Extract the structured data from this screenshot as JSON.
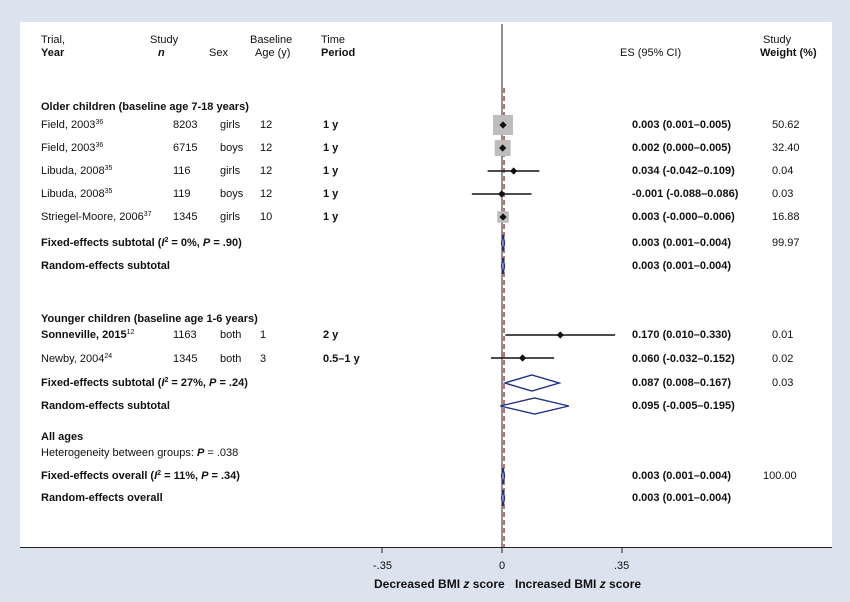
{
  "headers": {
    "trial": [
      "Trial,",
      "Year"
    ],
    "study_n": [
      "Study",
      "n"
    ],
    "sex": "Sex",
    "baseline_age": [
      "Baseline",
      "Age (y)"
    ],
    "time_period": [
      "Time",
      "Period"
    ],
    "es": "ES (95% CI)",
    "weight": [
      "Study",
      "Weight (%)"
    ]
  },
  "groups": {
    "older": "Older children (baseline age 7-18 years)",
    "younger": "Younger children (baseline age 1-6 years)",
    "all": "All ages",
    "heterogeneity_prefix": "Heterogeneity between groups: ",
    "heterogeneity_p": "P",
    "heterogeneity_value": " = .038"
  },
  "rows": [
    {
      "study": "Field, 2003",
      "ref": "36",
      "n": "8203",
      "sex": "girls",
      "age": "12",
      "period": "1 y",
      "es": "0.003 (0.001–0.005)",
      "weight": "50.62"
    },
    {
      "study": "Field, 2003",
      "ref": "36",
      "n": "6715",
      "sex": "boys",
      "age": "12",
      "period": "1 y",
      "es": "0.002 (0.000–0.005)",
      "weight": "32.40"
    },
    {
      "study": "Libuda, 2008",
      "ref": "35",
      "n": "116",
      "sex": "girls",
      "age": "12",
      "period": "1 y",
      "es": "0.034 (-0.042–0.109)",
      "weight": "0.04"
    },
    {
      "study": "Libuda, 2008",
      "ref": "35",
      "n": "119",
      "sex": "boys",
      "age": "12",
      "period": "1 y",
      "es": "-0.001 (-0.088–0.086)",
      "weight": "0.03"
    },
    {
      "study": "Striegel-Moore, 2006",
      "ref": "37",
      "n": "1345",
      "sex": "girls",
      "age": "10",
      "period": "1 y",
      "es": "0.003 (-0.000–0.006)",
      "weight": "16.88"
    },
    {
      "study": "Sonneville, 2015",
      "ref": "12",
      "n": "1163",
      "sex": "both",
      "age": "1",
      "period": "2 y",
      "es": "0.170 (0.010–0.330)",
      "weight": "0.01"
    },
    {
      "study": "Newby, 2004",
      "ref": "24",
      "n": "1345",
      "sex": "both",
      "age": "3",
      "period": "0.5–1 y",
      "es": "0.060 (-0.032–0.152)",
      "weight": "0.02"
    }
  ],
  "subtotals": [
    {
      "label_pre": "Fixed-effects subtotal (",
      "i2": "I",
      "label_mid": " = 0%, ",
      "p": "P",
      "label_post": " = .90)",
      "es": "0.003 (0.001–0.004)",
      "weight": "99.97"
    },
    {
      "label": "Random-effects subtotal",
      "es": "0.003 (0.001–0.004)",
      "weight": ""
    },
    {
      "label_pre": "Fixed-effects subtotal (",
      "i2": "I",
      "label_mid": " = 27%, ",
      "p": "P",
      "label_post": " = .24)",
      "es": "0.087 (0.008–0.167)",
      "weight": "0.03"
    },
    {
      "label": "Random-effects subtotal",
      "es": "0.095 (-0.005–0.195)",
      "weight": ""
    },
    {
      "label_pre": "Fixed-effects overall (",
      "i2": "I",
      "label_mid": " = 11%, ",
      "p": "P",
      "label_post": " = .34)",
      "es": "0.003 (0.001–0.004)",
      "weight": "100.00"
    },
    {
      "label": "Random-effects overall",
      "es": "0.003 (0.001–0.004)",
      "weight": ""
    }
  ],
  "axis": {
    "ticks": [
      "-.35",
      "0",
      ".35"
    ],
    "left_label": "Decreased BMI ",
    "right_label": "Increased BMI ",
    "z": "z",
    "score": " score"
  },
  "chart_data": {
    "type": "forest",
    "xlim": [
      -0.35,
      0.35
    ],
    "xticks": [
      -0.35,
      0,
      0.35
    ],
    "xlabel": "Decreased BMI z score   Increased BMI z score",
    "null_line": 0,
    "overall_line": 0.003,
    "colors": {
      "marker": "#111111",
      "box": "#bdbdbd",
      "diamond": "#1f2f8a",
      "overall_line": "#b03030",
      "background": "#dbe4ee"
    },
    "studies": [
      {
        "label": "Field, 2003 (girls)",
        "es": 0.003,
        "lo": 0.001,
        "hi": 0.005,
        "weight": 50.62
      },
      {
        "label": "Field, 2003 (boys)",
        "es": 0.002,
        "lo": 0.0,
        "hi": 0.005,
        "weight": 32.4
      },
      {
        "label": "Libuda, 2008 (girls)",
        "es": 0.034,
        "lo": -0.042,
        "hi": 0.109,
        "weight": 0.04
      },
      {
        "label": "Libuda, 2008 (boys)",
        "es": -0.001,
        "lo": -0.088,
        "hi": 0.086,
        "weight": 0.03
      },
      {
        "label": "Striegel-Moore, 2006",
        "es": 0.003,
        "lo": -0.0,
        "hi": 0.006,
        "weight": 16.88
      },
      {
        "label": "Sonneville, 2015",
        "es": 0.17,
        "lo": 0.01,
        "hi": 0.33,
        "weight": 0.01
      },
      {
        "label": "Newby, 2004",
        "es": 0.06,
        "lo": -0.032,
        "hi": 0.152,
        "weight": 0.02
      }
    ],
    "pooled": [
      {
        "label": "Fixed-effects subtotal (older)",
        "es": 0.003,
        "lo": 0.001,
        "hi": 0.004
      },
      {
        "label": "Random-effects subtotal (older)",
        "es": 0.003,
        "lo": 0.001,
        "hi": 0.004
      },
      {
        "label": "Fixed-effects subtotal (younger)",
        "es": 0.087,
        "lo": 0.008,
        "hi": 0.167
      },
      {
        "label": "Random-effects subtotal (younger)",
        "es": 0.095,
        "lo": -0.005,
        "hi": 0.195
      },
      {
        "label": "Fixed-effects overall",
        "es": 0.003,
        "lo": 0.001,
        "hi": 0.004
      },
      {
        "label": "Random-effects overall",
        "es": 0.003,
        "lo": 0.001,
        "hi": 0.004
      }
    ]
  }
}
